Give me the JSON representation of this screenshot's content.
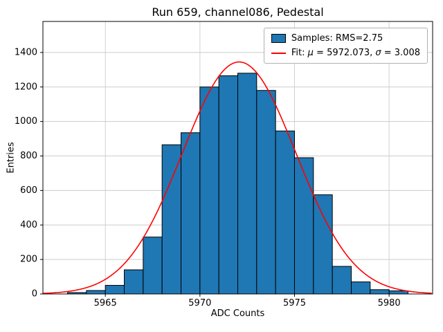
{
  "chart_data": {
    "type": "bar",
    "subtype": "histogram-with-gaussian-fit",
    "title": "Run 659, channel086, Pedestal",
    "xlabel": "ADC Counts",
    "ylabel": "Entries",
    "xlim": [
      5961.7,
      5982.3
    ],
    "ylim": [
      0,
      1580
    ],
    "xticks": [
      5965,
      5970,
      5975,
      5980
    ],
    "yticks": [
      0,
      200,
      400,
      600,
      800,
      1000,
      1200,
      1400
    ],
    "grid": true,
    "bin_start": 5963,
    "bin_width": 1,
    "counts": [
      8,
      20,
      50,
      140,
      330,
      865,
      935,
      1200,
      1265,
      1280,
      1180,
      945,
      790,
      575,
      160,
      70,
      25,
      18
    ],
    "fit": {
      "mu": 5972.073,
      "sigma": 3.008,
      "amplitude": 1345
    },
    "colors": {
      "bar_fill": "#1f77b4",
      "bar_edge": "#000000",
      "fit_line": "#ff0000",
      "grid_line": "#cccccc",
      "axes": "#000000"
    },
    "legend": {
      "position": "upper right",
      "samples_label": "Samples: RMS=2.75",
      "fit_label": "Fit: μ = 5972.073, σ = 3.008",
      "fit_parts": [
        "Fit: ",
        "μ",
        " = 5972.073, ",
        "σ",
        " = 3.008"
      ]
    }
  }
}
